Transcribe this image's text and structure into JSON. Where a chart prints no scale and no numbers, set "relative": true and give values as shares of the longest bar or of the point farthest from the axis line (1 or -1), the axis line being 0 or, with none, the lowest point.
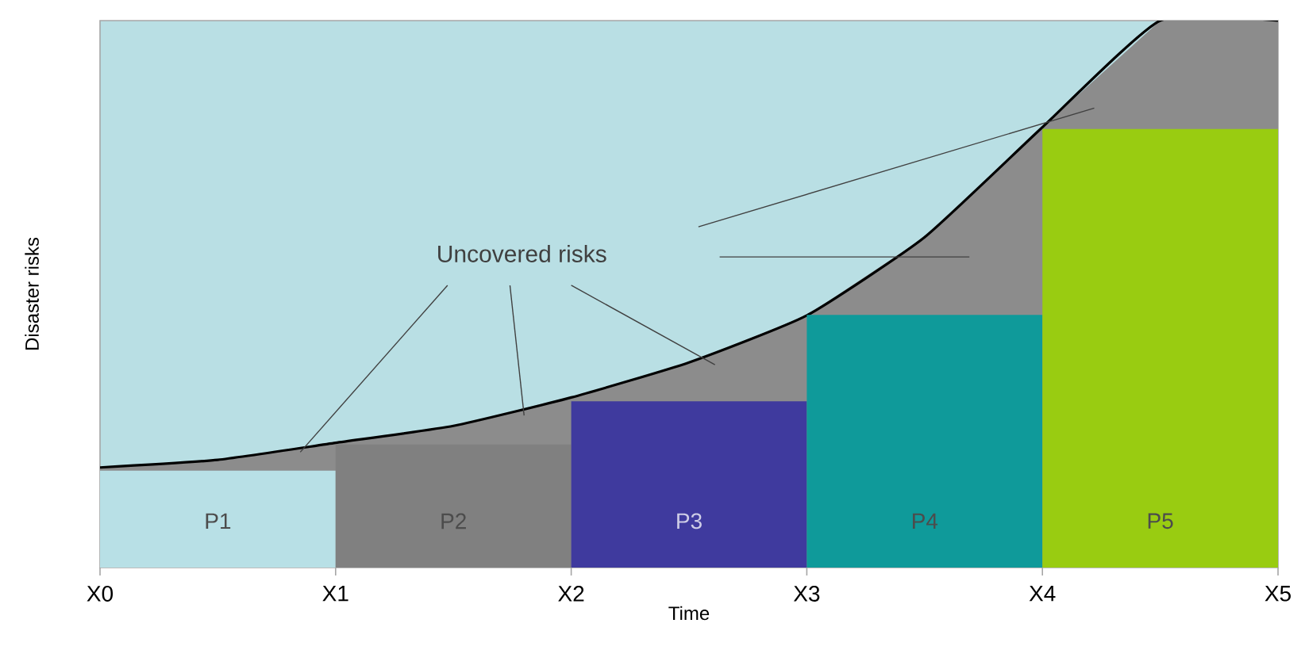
{
  "chart_data": {
    "type": "bar",
    "relative": true,
    "xlabel": "Time",
    "ylabel": "Disaster risks",
    "categories": [
      "X0",
      null,
      "X1",
      null,
      "X2",
      null,
      "X3",
      null,
      "X4",
      null,
      "X5"
    ],
    "series": [
      {
        "values": [
          null,
          0.177,
          null,
          0.225,
          null,
          0.304,
          null,
          0.462,
          null,
          0.802,
          null
        ],
        "colors": [
          null,
          "#b8e0e6",
          null,
          "#808080",
          null,
          "#3f3a9e",
          null,
          "#0f9a9a",
          null,
          "#99cc11",
          null
        ]
      },
      {
        "type": "area",
        "values": [
          0.183,
          0.197,
          0.228,
          0.259,
          0.311,
          0.375,
          0.461,
          0.604,
          0.805,
          1.0,
          1.0
        ],
        "color": "#000000"
      }
    ],
    "annotations": [
      "Uncovered risks",
      "P1",
      "P2",
      "P3",
      "P4",
      "P5"
    ],
    "grid": false
  }
}
